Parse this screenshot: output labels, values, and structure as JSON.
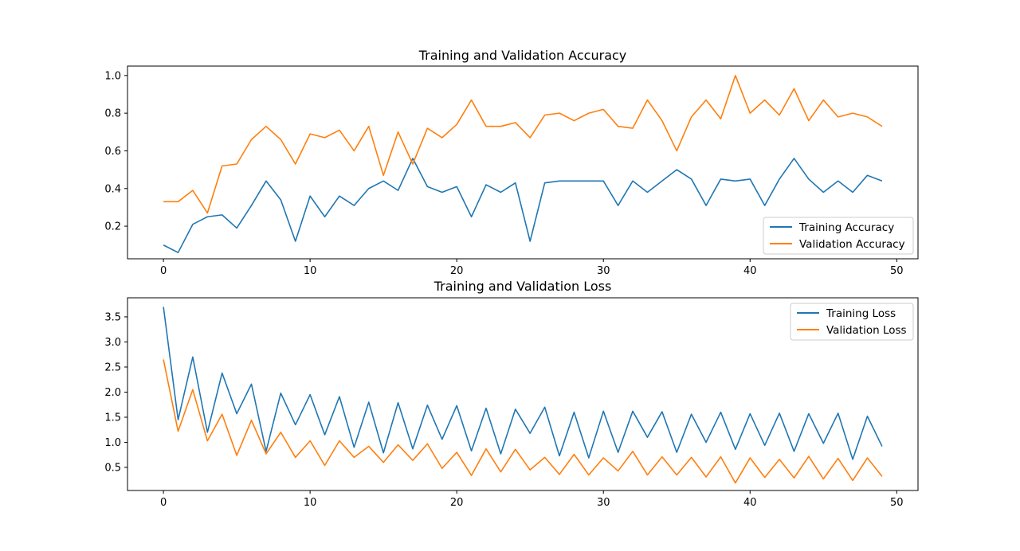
{
  "chart_data": [
    {
      "type": "line",
      "title": "Training and Validation Accuracy",
      "xlabel": "",
      "ylabel": "",
      "xlim": [
        -2.45,
        51.45
      ],
      "ylim": [
        0.027,
        1.05
      ],
      "xticks": [
        0,
        10,
        20,
        30,
        40,
        50
      ],
      "yticks": [
        0.2,
        0.4,
        0.6,
        0.8,
        1.0
      ],
      "ytick_labels": [
        "0.2",
        "0.4",
        "0.6",
        "0.8",
        "1.0"
      ],
      "legend_position": "lower-right",
      "grid": false,
      "x": [
        0,
        1,
        2,
        3,
        4,
        5,
        6,
        7,
        8,
        9,
        10,
        11,
        12,
        13,
        14,
        15,
        16,
        17,
        18,
        19,
        20,
        21,
        22,
        23,
        24,
        25,
        26,
        27,
        28,
        29,
        30,
        31,
        32,
        33,
        34,
        35,
        36,
        37,
        38,
        39,
        40,
        41,
        42,
        43,
        44,
        45,
        46,
        47,
        48,
        49
      ],
      "series": [
        {
          "name": "Training Accuracy",
          "color": "#1f77b4",
          "values": [
            0.1,
            0.06,
            0.21,
            0.25,
            0.26,
            0.19,
            0.31,
            0.44,
            0.34,
            0.12,
            0.36,
            0.25,
            0.36,
            0.31,
            0.4,
            0.44,
            0.39,
            0.56,
            0.41,
            0.38,
            0.41,
            0.25,
            0.42,
            0.38,
            0.43,
            0.12,
            0.43,
            0.44,
            0.44,
            0.44,
            0.44,
            0.31,
            0.44,
            0.38,
            0.44,
            0.5,
            0.45,
            0.31,
            0.45,
            0.44,
            0.45,
            0.31,
            0.45,
            0.56,
            0.45,
            0.38,
            0.44,
            0.38,
            0.47,
            0.44
          ]
        },
        {
          "name": "Validation Accuracy",
          "color": "#ff7f0e",
          "values": [
            0.33,
            0.33,
            0.39,
            0.27,
            0.52,
            0.53,
            0.66,
            0.73,
            0.66,
            0.53,
            0.69,
            0.67,
            0.71,
            0.6,
            0.73,
            0.47,
            0.7,
            0.53,
            0.72,
            0.67,
            0.74,
            0.87,
            0.73,
            0.73,
            0.75,
            0.67,
            0.79,
            0.8,
            0.76,
            0.8,
            0.82,
            0.73,
            0.72,
            0.87,
            0.76,
            0.6,
            0.78,
            0.87,
            0.77,
            1.0,
            0.8,
            0.87,
            0.79,
            0.93,
            0.76,
            0.87,
            0.78,
            0.8,
            0.78,
            0.73
          ]
        }
      ]
    },
    {
      "type": "line",
      "title": "Training and Validation Loss",
      "xlabel": "",
      "ylabel": "",
      "xlim": [
        -2.45,
        51.45
      ],
      "ylim": [
        0.04,
        3.88
      ],
      "xticks": [
        0,
        10,
        20,
        30,
        40,
        50
      ],
      "yticks": [
        0.5,
        1.0,
        1.5,
        2.0,
        2.5,
        3.0,
        3.5
      ],
      "ytick_labels": [
        "0.5",
        "1.0",
        "1.5",
        "2.0",
        "2.5",
        "3.0",
        "3.5"
      ],
      "legend_position": "upper-right",
      "grid": false,
      "x": [
        0,
        1,
        2,
        3,
        4,
        5,
        6,
        7,
        8,
        9,
        10,
        11,
        12,
        13,
        14,
        15,
        16,
        17,
        18,
        19,
        20,
        21,
        22,
        23,
        24,
        25,
        26,
        27,
        28,
        29,
        30,
        31,
        32,
        33,
        34,
        35,
        36,
        37,
        38,
        39,
        40,
        41,
        42,
        43,
        44,
        45,
        46,
        47,
        48,
        49
      ],
      "series": [
        {
          "name": "Training Loss",
          "color": "#1f77b4",
          "values": [
            3.7,
            1.45,
            2.7,
            1.2,
            2.38,
            1.57,
            2.16,
            0.82,
            1.98,
            1.35,
            1.95,
            1.15,
            1.91,
            0.9,
            1.8,
            0.79,
            1.79,
            0.87,
            1.74,
            1.06,
            1.73,
            0.83,
            1.68,
            0.77,
            1.66,
            1.18,
            1.7,
            0.73,
            1.6,
            0.69,
            1.62,
            0.8,
            1.62,
            1.1,
            1.61,
            0.8,
            1.56,
            1.0,
            1.6,
            0.86,
            1.57,
            0.94,
            1.58,
            0.82,
            1.57,
            0.98,
            1.58,
            0.66,
            1.52,
            0.92
          ]
        },
        {
          "name": "Validation Loss",
          "color": "#ff7f0e",
          "values": [
            2.65,
            1.22,
            2.05,
            1.03,
            1.56,
            0.74,
            1.44,
            0.77,
            1.2,
            0.7,
            1.03,
            0.54,
            1.03,
            0.7,
            0.92,
            0.6,
            0.95,
            0.64,
            0.97,
            0.48,
            0.8,
            0.34,
            0.87,
            0.41,
            0.86,
            0.45,
            0.7,
            0.36,
            0.76,
            0.35,
            0.69,
            0.43,
            0.82,
            0.35,
            0.71,
            0.35,
            0.7,
            0.31,
            0.71,
            0.19,
            0.69,
            0.3,
            0.66,
            0.29,
            0.72,
            0.27,
            0.68,
            0.24,
            0.69,
            0.32
          ]
        }
      ]
    }
  ]
}
